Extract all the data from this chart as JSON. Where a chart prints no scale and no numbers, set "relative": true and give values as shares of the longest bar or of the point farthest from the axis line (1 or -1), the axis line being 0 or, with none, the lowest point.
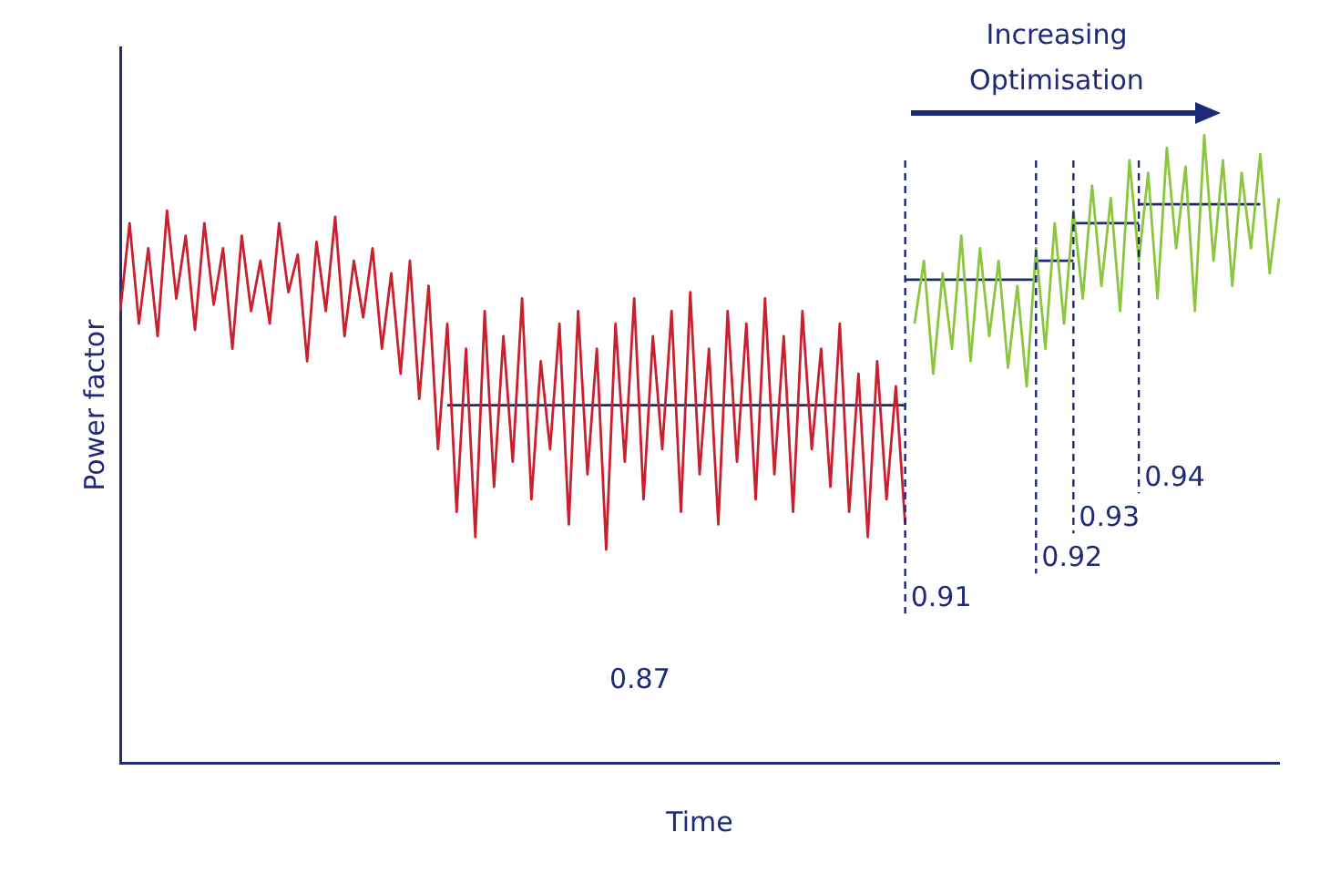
{
  "chart_data": {
    "type": "line",
    "relative": true,
    "xlabel": "Time",
    "ylabel": "Power factor",
    "grid": false,
    "legend": false,
    "marker": "none",
    "categories": [
      null,
      null,
      null,
      null,
      null,
      null,
      null,
      null,
      null,
      null,
      null,
      null,
      null,
      null,
      null,
      null,
      null,
      null,
      null,
      null,
      null,
      null,
      null,
      null,
      null,
      null,
      null,
      null,
      null,
      null,
      null,
      null,
      null,
      null,
      null,
      null,
      null,
      null,
      null,
      null,
      null,
      null,
      null,
      null,
      null,
      null,
      null,
      null,
      null,
      null,
      null,
      null,
      null,
      null,
      null,
      null,
      null,
      null,
      null,
      null,
      null,
      null,
      null,
      null,
      null,
      null,
      null,
      null,
      null,
      null,
      null,
      null,
      null,
      null,
      null,
      null,
      null,
      null,
      null,
      null,
      null,
      null,
      null,
      null,
      null,
      null,
      null,
      null,
      null,
      null,
      null,
      null,
      null,
      null,
      null,
      null,
      null,
      null,
      null,
      null,
      null,
      null,
      null,
      null,
      null,
      null,
      null,
      null,
      null,
      null,
      null,
      null,
      null,
      null,
      null,
      null,
      null,
      null,
      null,
      null,
      null,
      null,
      null,
      null,
      null
    ],
    "series": [
      {
        "color": "#c8202f",
        "values": [
          0.72,
          0.86,
          0.7,
          0.82,
          0.68,
          0.88,
          0.74,
          0.84,
          0.69,
          0.86,
          0.73,
          0.82,
          0.66,
          0.84,
          0.72,
          0.8,
          0.7,
          0.86,
          0.75,
          0.81,
          0.64,
          0.83,
          0.72,
          0.87,
          0.68,
          0.8,
          0.71,
          0.82,
          0.66,
          0.78,
          0.62,
          0.8,
          0.58,
          0.76,
          0.5,
          0.7,
          0.4,
          0.66,
          0.36,
          0.72,
          0.44,
          0.68,
          0.48,
          0.74,
          0.42,
          0.64,
          0.5,
          0.7,
          0.38,
          0.72,
          0.46,
          0.66,
          0.34,
          0.7,
          0.48,
          0.74,
          0.42,
          0.68,
          0.5,
          0.72,
          0.4,
          0.75,
          0.46,
          0.66,
          0.38,
          0.72,
          0.48,
          0.7,
          0.42,
          0.74,
          0.46,
          0.68,
          0.4,
          0.72,
          0.5,
          0.66,
          0.44,
          0.7,
          0.4,
          0.62,
          0.36,
          0.64,
          0.42,
          0.6,
          0.38,
          null,
          null,
          null,
          null,
          null,
          null,
          null,
          null,
          null,
          null,
          null,
          null,
          null,
          null,
          null,
          null,
          null,
          null,
          null,
          null,
          null,
          null,
          null,
          null,
          null,
          null,
          null,
          null,
          null,
          null,
          null,
          null,
          null,
          null,
          null,
          null,
          null,
          null,
          null,
          null
        ]
      },
      {
        "color": "#8cc63f",
        "values": [
          null,
          null,
          null,
          null,
          null,
          null,
          null,
          null,
          null,
          null,
          null,
          null,
          null,
          null,
          null,
          null,
          null,
          null,
          null,
          null,
          null,
          null,
          null,
          null,
          null,
          null,
          null,
          null,
          null,
          null,
          null,
          null,
          null,
          null,
          null,
          null,
          null,
          null,
          null,
          null,
          null,
          null,
          null,
          null,
          null,
          null,
          null,
          null,
          null,
          null,
          null,
          null,
          null,
          null,
          null,
          null,
          null,
          null,
          null,
          null,
          null,
          null,
          null,
          null,
          null,
          null,
          null,
          null,
          null,
          null,
          null,
          null,
          null,
          null,
          null,
          null,
          null,
          null,
          null,
          null,
          null,
          null,
          null,
          null,
          null,
          0.7,
          0.8,
          0.62,
          0.78,
          0.66,
          0.84,
          0.64,
          0.82,
          0.68,
          0.8,
          0.63,
          0.76,
          0.6,
          0.82,
          0.66,
          0.86,
          0.7,
          0.88,
          0.74,
          0.92,
          0.76,
          0.9,
          0.72,
          0.96,
          0.8,
          0.94,
          0.74,
          0.98,
          0.82,
          0.95,
          0.72,
          1.0,
          0.8,
          0.96,
          0.76,
          0.94,
          0.82,
          0.97,
          0.78,
          0.9
        ]
      },
      {
        "color": "#1e2a78",
        "values": [
          null,
          null,
          null,
          null,
          null,
          null,
          null,
          null,
          null,
          null,
          null,
          null,
          null,
          null,
          null,
          null,
          null,
          null,
          null,
          null,
          null,
          null,
          null,
          null,
          null,
          null,
          null,
          null,
          null,
          null,
          null,
          null,
          null,
          null,
          null,
          0.57,
          0.57,
          0.57,
          0.57,
          0.57,
          0.57,
          0.57,
          0.57,
          0.57,
          0.57,
          0.57,
          0.57,
          0.57,
          0.57,
          0.57,
          0.57,
          0.57,
          0.57,
          0.57,
          0.57,
          0.57,
          0.57,
          0.57,
          0.57,
          0.57,
          0.57,
          0.57,
          0.57,
          0.57,
          0.57,
          0.57,
          0.57,
          0.57,
          0.57,
          0.57,
          0.57,
          0.57,
          0.57,
          0.57,
          0.57,
          0.57,
          0.57,
          0.57,
          0.57,
          0.57,
          0.57,
          0.57,
          0.57,
          0.57,
          0.57,
          null,
          null,
          null,
          null,
          null,
          null,
          null,
          null,
          null,
          null,
          null,
          null,
          null,
          null,
          null,
          null,
          null,
          null,
          null,
          null,
          null,
          null,
          null,
          null,
          null,
          null,
          null,
          null,
          null,
          null,
          null,
          null,
          null,
          null,
          null,
          null,
          null,
          null,
          null,
          null
        ]
      },
      {
        "color": "#1e2a78",
        "values": [
          null,
          null,
          null,
          null,
          null,
          null,
          null,
          null,
          null,
          null,
          null,
          null,
          null,
          null,
          null,
          null,
          null,
          null,
          null,
          null,
          null,
          null,
          null,
          null,
          null,
          null,
          null,
          null,
          null,
          null,
          null,
          null,
          null,
          null,
          null,
          null,
          null,
          null,
          null,
          null,
          null,
          null,
          null,
          null,
          null,
          null,
          null,
          null,
          null,
          null,
          null,
          null,
          null,
          null,
          null,
          null,
          null,
          null,
          null,
          null,
          null,
          null,
          null,
          null,
          null,
          null,
          null,
          null,
          null,
          null,
          null,
          null,
          null,
          null,
          null,
          null,
          null,
          null,
          null,
          null,
          null,
          null,
          null,
          null,
          0.77,
          0.77,
          0.77,
          0.77,
          0.77,
          0.77,
          0.77,
          0.77,
          0.77,
          0.77,
          0.77,
          0.77,
          0.77,
          0.77,
          0.77,
          null,
          null,
          null,
          null,
          null,
          null,
          null,
          null,
          null,
          null,
          null,
          null,
          null,
          null,
          null,
          null,
          null,
          null,
          null,
          null,
          null,
          null,
          null,
          null,
          null,
          null
        ]
      },
      {
        "color": "#1e2a78",
        "values": [
          null,
          null,
          null,
          null,
          null,
          null,
          null,
          null,
          null,
          null,
          null,
          null,
          null,
          null,
          null,
          null,
          null,
          null,
          null,
          null,
          null,
          null,
          null,
          null,
          null,
          null,
          null,
          null,
          null,
          null,
          null,
          null,
          null,
          null,
          null,
          null,
          null,
          null,
          null,
          null,
          null,
          null,
          null,
          null,
          null,
          null,
          null,
          null,
          null,
          null,
          null,
          null,
          null,
          null,
          null,
          null,
          null,
          null,
          null,
          null,
          null,
          null,
          null,
          null,
          null,
          null,
          null,
          null,
          null,
          null,
          null,
          null,
          null,
          null,
          null,
          null,
          null,
          null,
          null,
          null,
          null,
          null,
          null,
          null,
          null,
          null,
          null,
          null,
          null,
          null,
          null,
          null,
          null,
          null,
          null,
          null,
          null,
          null,
          0.8,
          0.8,
          0.8,
          0.8,
          0.8,
          null,
          null,
          null,
          null,
          null,
          null,
          null,
          null,
          null,
          null,
          null,
          null,
          null,
          null,
          null,
          null,
          null,
          null,
          null,
          null,
          null,
          null
        ]
      },
      {
        "color": "#1e2a78",
        "values": [
          null,
          null,
          null,
          null,
          null,
          null,
          null,
          null,
          null,
          null,
          null,
          null,
          null,
          null,
          null,
          null,
          null,
          null,
          null,
          null,
          null,
          null,
          null,
          null,
          null,
          null,
          null,
          null,
          null,
          null,
          null,
          null,
          null,
          null,
          null,
          null,
          null,
          null,
          null,
          null,
          null,
          null,
          null,
          null,
          null,
          null,
          null,
          null,
          null,
          null,
          null,
          null,
          null,
          null,
          null,
          null,
          null,
          null,
          null,
          null,
          null,
          null,
          null,
          null,
          null,
          null,
          null,
          null,
          null,
          null,
          null,
          null,
          null,
          null,
          null,
          null,
          null,
          null,
          null,
          null,
          null,
          null,
          null,
          null,
          null,
          null,
          null,
          null,
          null,
          null,
          null,
          null,
          null,
          null,
          null,
          null,
          null,
          null,
          null,
          null,
          null,
          null,
          0.86,
          0.86,
          0.86,
          0.86,
          0.86,
          0.86,
          0.86,
          0.86,
          null,
          null,
          null,
          null,
          null,
          null,
          null,
          null,
          null,
          null,
          null,
          null,
          null,
          null,
          null
        ]
      },
      {
        "color": "#1e2a78",
        "values": [
          null,
          null,
          null,
          null,
          null,
          null,
          null,
          null,
          null,
          null,
          null,
          null,
          null,
          null,
          null,
          null,
          null,
          null,
          null,
          null,
          null,
          null,
          null,
          null,
          null,
          null,
          null,
          null,
          null,
          null,
          null,
          null,
          null,
          null,
          null,
          null,
          null,
          null,
          null,
          null,
          null,
          null,
          null,
          null,
          null,
          null,
          null,
          null,
          null,
          null,
          null,
          null,
          null,
          null,
          null,
          null,
          null,
          null,
          null,
          null,
          null,
          null,
          null,
          null,
          null,
          null,
          null,
          null,
          null,
          null,
          null,
          null,
          null,
          null,
          null,
          null,
          null,
          null,
          null,
          null,
          null,
          null,
          null,
          null,
          null,
          null,
          null,
          null,
          null,
          null,
          null,
          null,
          null,
          null,
          null,
          null,
          null,
          null,
          null,
          null,
          null,
          null,
          null,
          null,
          null,
          null,
          null,
          null,
          null,
          0.89,
          0.89,
          0.89,
          0.89,
          0.89,
          0.89,
          0.89,
          0.89,
          0.89,
          0.89,
          0.89,
          0.89,
          0.89,
          0.89,
          null,
          null
        ]
      }
    ],
    "annotations": [
      "0.87",
      "0.91",
      "0.92",
      "0.93",
      "0.94",
      "Increasing Optimisation"
    ]
  }
}
